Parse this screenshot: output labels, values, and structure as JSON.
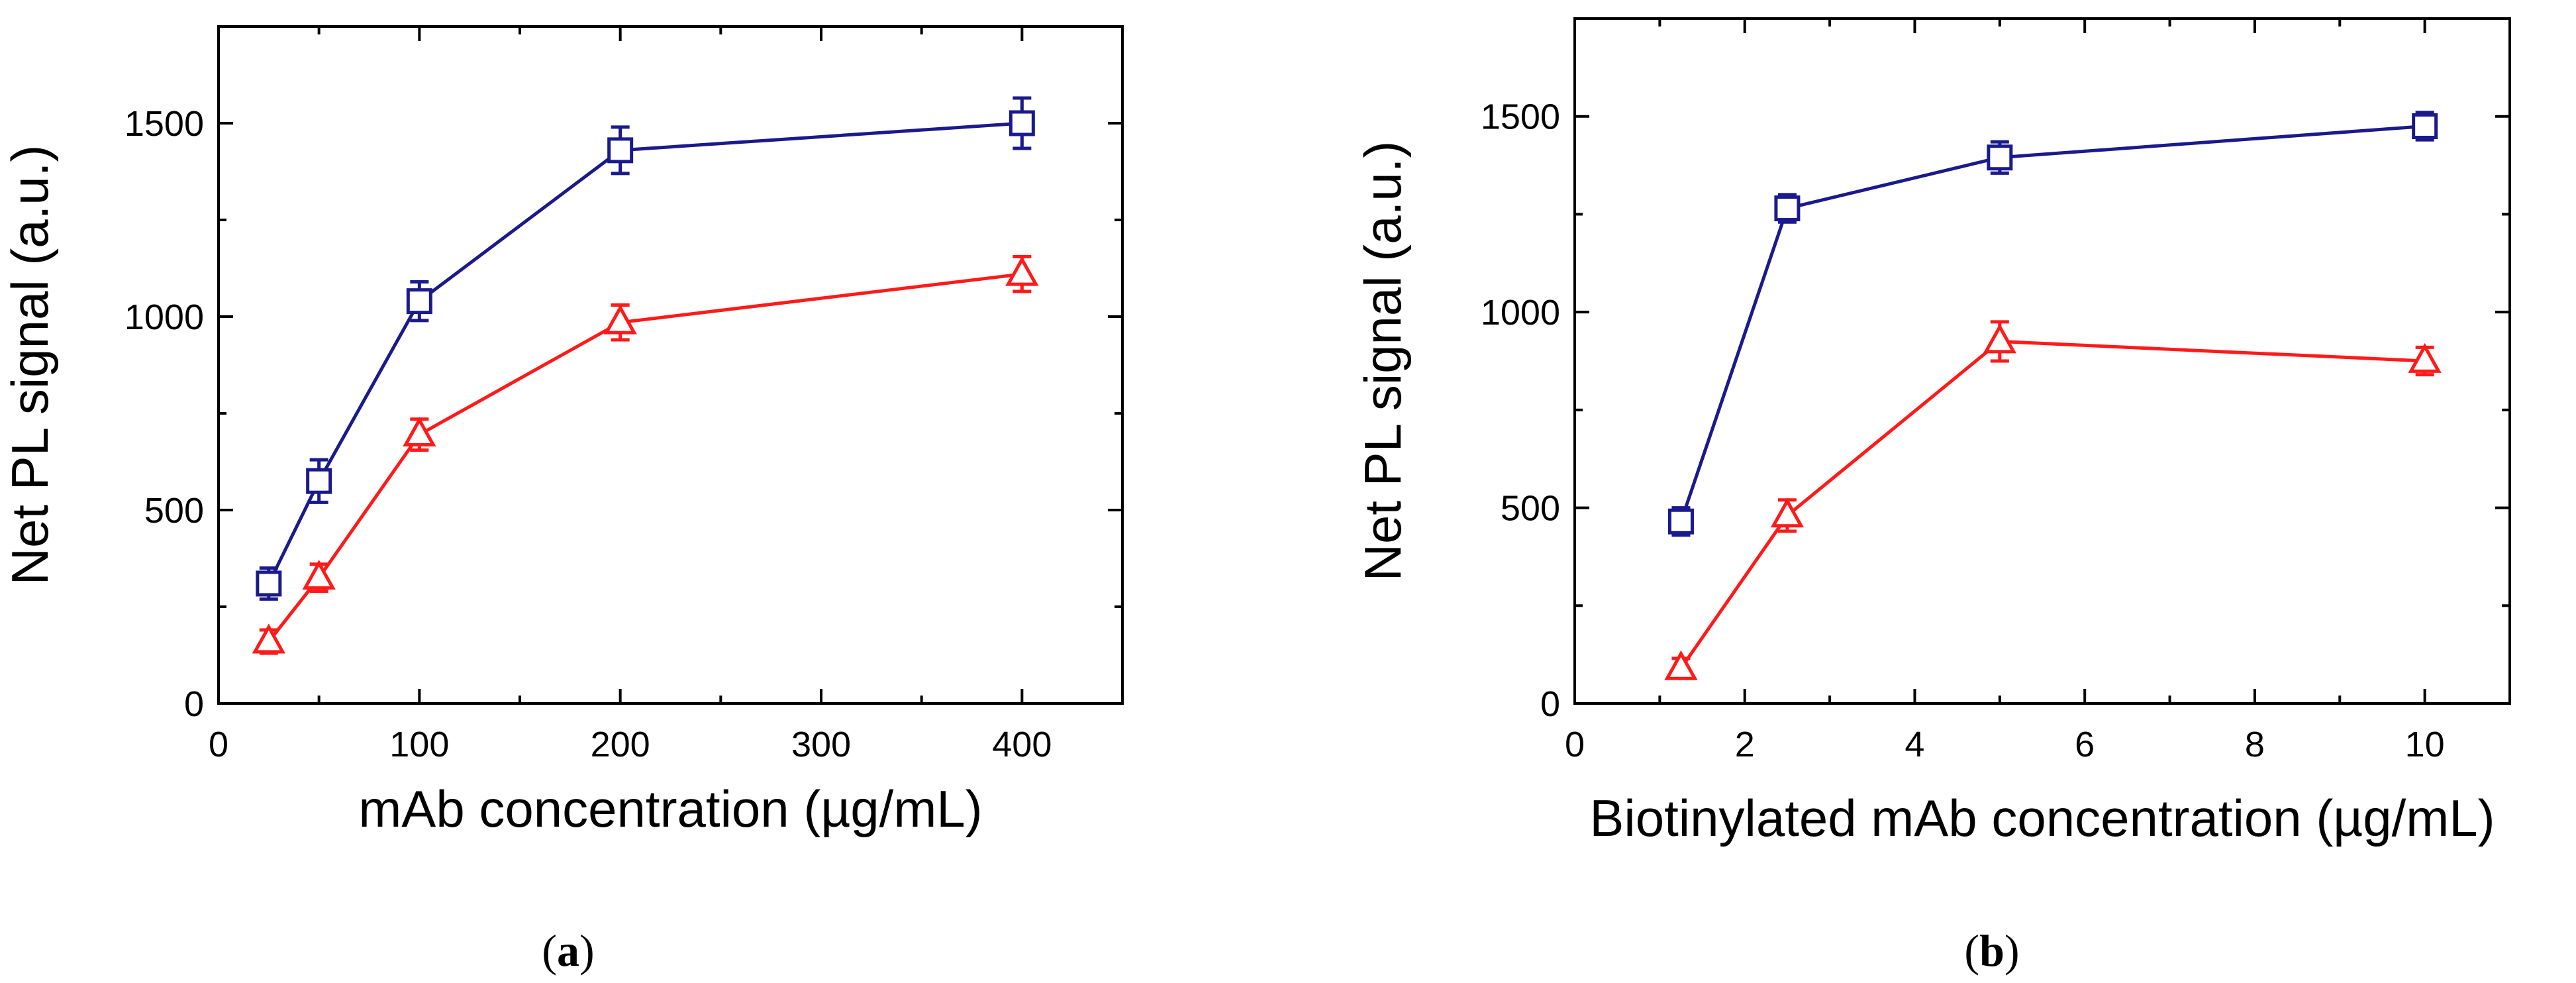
{
  "chart_data": [
    {
      "type": "line",
      "panel_label": {
        "open": "(",
        "letter": "a",
        "close": ")"
      },
      "xlabel": "mAb concentration (µg/mL)",
      "ylabel": "Net PL signal (a.u.)",
      "xlim": [
        0,
        450
      ],
      "ylim": [
        0,
        1750
      ],
      "xticks": [
        0,
        100,
        200,
        300,
        400
      ],
      "xticks_minor": [
        50,
        150,
        250,
        350
      ],
      "yticks": [
        0,
        500,
        1000,
        1500
      ],
      "yticks_minor": [
        250,
        750,
        1250
      ],
      "grid": false,
      "series": [
        {
          "name": "blue squares",
          "color": "#1a1a8c",
          "marker": "square",
          "x": [
            25,
            50,
            100,
            200,
            400
          ],
          "y": [
            310,
            575,
            1040,
            1430,
            1500
          ],
          "err": [
            40,
            55,
            50,
            60,
            65
          ]
        },
        {
          "name": "red triangles",
          "color": "#ff1a1a",
          "marker": "triangle",
          "x": [
            25,
            50,
            100,
            200,
            400
          ],
          "y": [
            160,
            325,
            695,
            985,
            1110
          ],
          "err": [
            30,
            35,
            40,
            45,
            45
          ]
        }
      ]
    },
    {
      "type": "line",
      "panel_label": {
        "open": "(",
        "letter": "b",
        "close": ")"
      },
      "xlabel": "Biotinylated mAb concentration (µg/mL)",
      "ylabel": "Net PL signal (a.u.)",
      "xlim": [
        0,
        11
      ],
      "ylim": [
        0,
        1750
      ],
      "xticks": [
        0,
        2,
        4,
        6,
        8,
        10
      ],
      "xticks_minor": [
        1,
        3,
        5,
        7,
        9
      ],
      "yticks": [
        0,
        500,
        1000,
        1500
      ],
      "yticks_minor": [
        250,
        750,
        1250
      ],
      "grid": false,
      "series": [
        {
          "name": "blue squares",
          "color": "#1a1a8c",
          "marker": "square",
          "x": [
            1.25,
            2.5,
            5,
            10
          ],
          "y": [
            465,
            1265,
            1395,
            1475
          ],
          "err": [
            35,
            35,
            40,
            35
          ]
        },
        {
          "name": "red triangles",
          "color": "#ff1a1a",
          "marker": "triangle",
          "x": [
            1.25,
            2.5,
            5,
            10
          ],
          "y": [
            90,
            480,
            925,
            875
          ],
          "err": [
            25,
            40,
            50,
            35
          ]
        }
      ]
    }
  ]
}
